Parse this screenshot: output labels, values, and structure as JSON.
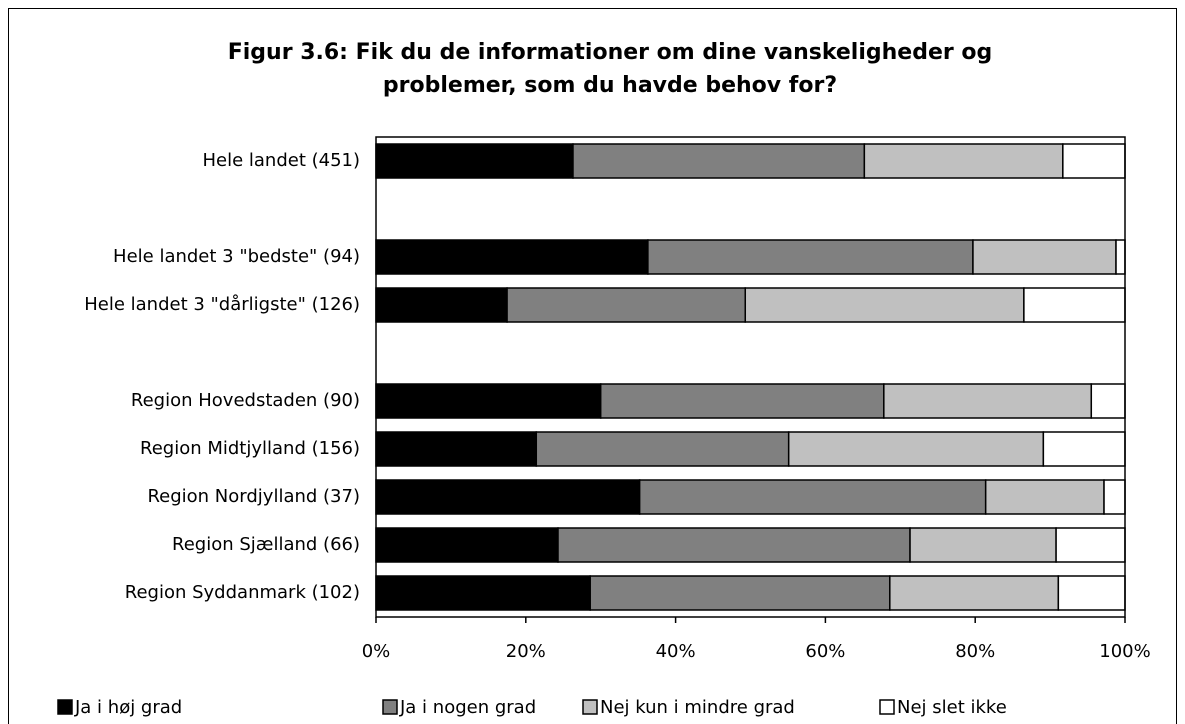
{
  "chart_data": {
    "type": "stacked_barh",
    "title": "Figur 3.6: Fik du de informationer om dine vanskeligheder og problemer, som du havde behov for?",
    "categories": [
      "Hele landet  (451)",
      null,
      "Hele landet 3 \"bedste\" (94)",
      "Hele landet 3 \"dårligste\" (126)",
      null,
      "Region Hovedstaden (90)",
      "Region Midtjylland (156)",
      "Region Nordjylland (37)",
      "Region Sjælland (66)",
      "Region Syddanmark (102)"
    ],
    "series": [
      {
        "name": "Ja i høj grad",
        "color": "#000000",
        "values": [
          26.3,
          null,
          36.3,
          17.5,
          null,
          30.0,
          21.4,
          35.2,
          24.3,
          28.6
        ]
      },
      {
        "name": "Ja i nogen grad",
        "color": "#808080",
        "values": [
          38.9,
          null,
          43.4,
          31.8,
          null,
          37.8,
          33.7,
          46.2,
          47.0,
          40.0
        ]
      },
      {
        "name": "Nej kun i mindre grad",
        "color": "#c0c0c0",
        "values": [
          26.5,
          null,
          19.1,
          37.2,
          null,
          27.7,
          34.0,
          15.8,
          19.5,
          22.5
        ]
      },
      {
        "name": "Nej slet ikke",
        "color": "#ffffff",
        "values": [
          8.3,
          null,
          1.2,
          13.5,
          null,
          4.5,
          10.9,
          2.8,
          9.2,
          8.9
        ]
      }
    ],
    "xlim": [
      0,
      100
    ],
    "xticks": [
      {
        "value": 0,
        "label": "0%"
      },
      {
        "value": 20,
        "label": "20%"
      },
      {
        "value": 40,
        "label": "40%"
      },
      {
        "value": 60,
        "label": "60%"
      },
      {
        "value": 80,
        "label": "80%"
      },
      {
        "value": 100,
        "label": "100%"
      }
    ],
    "legend": "bottom"
  }
}
